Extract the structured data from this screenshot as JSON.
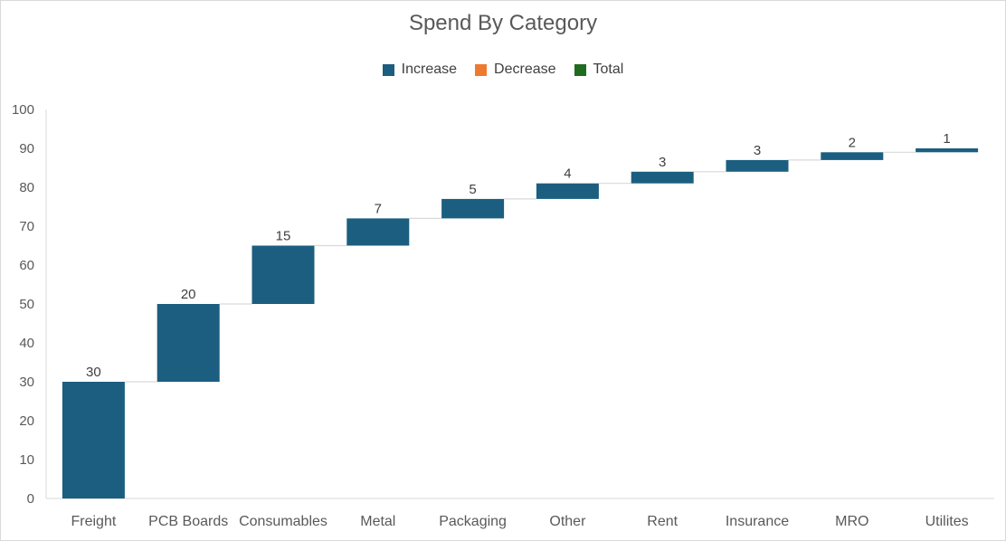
{
  "chart_data": {
    "type": "bar",
    "subtype": "waterfall",
    "title": "Spend By Category",
    "xlabel": "",
    "ylabel": "",
    "ylim": [
      0,
      100
    ],
    "yticks": [
      0,
      10,
      20,
      30,
      40,
      50,
      60,
      70,
      80,
      90,
      100
    ],
    "grid": false,
    "legend": [
      {
        "name": "Increase",
        "color": "#1b5e80"
      },
      {
        "name": "Decrease",
        "color": "#ee7a30"
      },
      {
        "name": "Total",
        "color": "#1f6b1f"
      }
    ],
    "legend_position": "top",
    "categories": [
      "Freight",
      "PCB Boards",
      "Consumables",
      "Metal",
      "Packaging",
      "Other",
      "Rent",
      "Insurance",
      "MRO",
      "Utilites"
    ],
    "values": [
      30,
      20,
      15,
      7,
      5,
      4,
      3,
      3,
      2,
      1
    ],
    "data_labels": [
      "30",
      "20",
      "15",
      "7",
      "5",
      "4",
      "3",
      "3",
      "2",
      "1"
    ],
    "connector_color": "#d9d9d9"
  }
}
